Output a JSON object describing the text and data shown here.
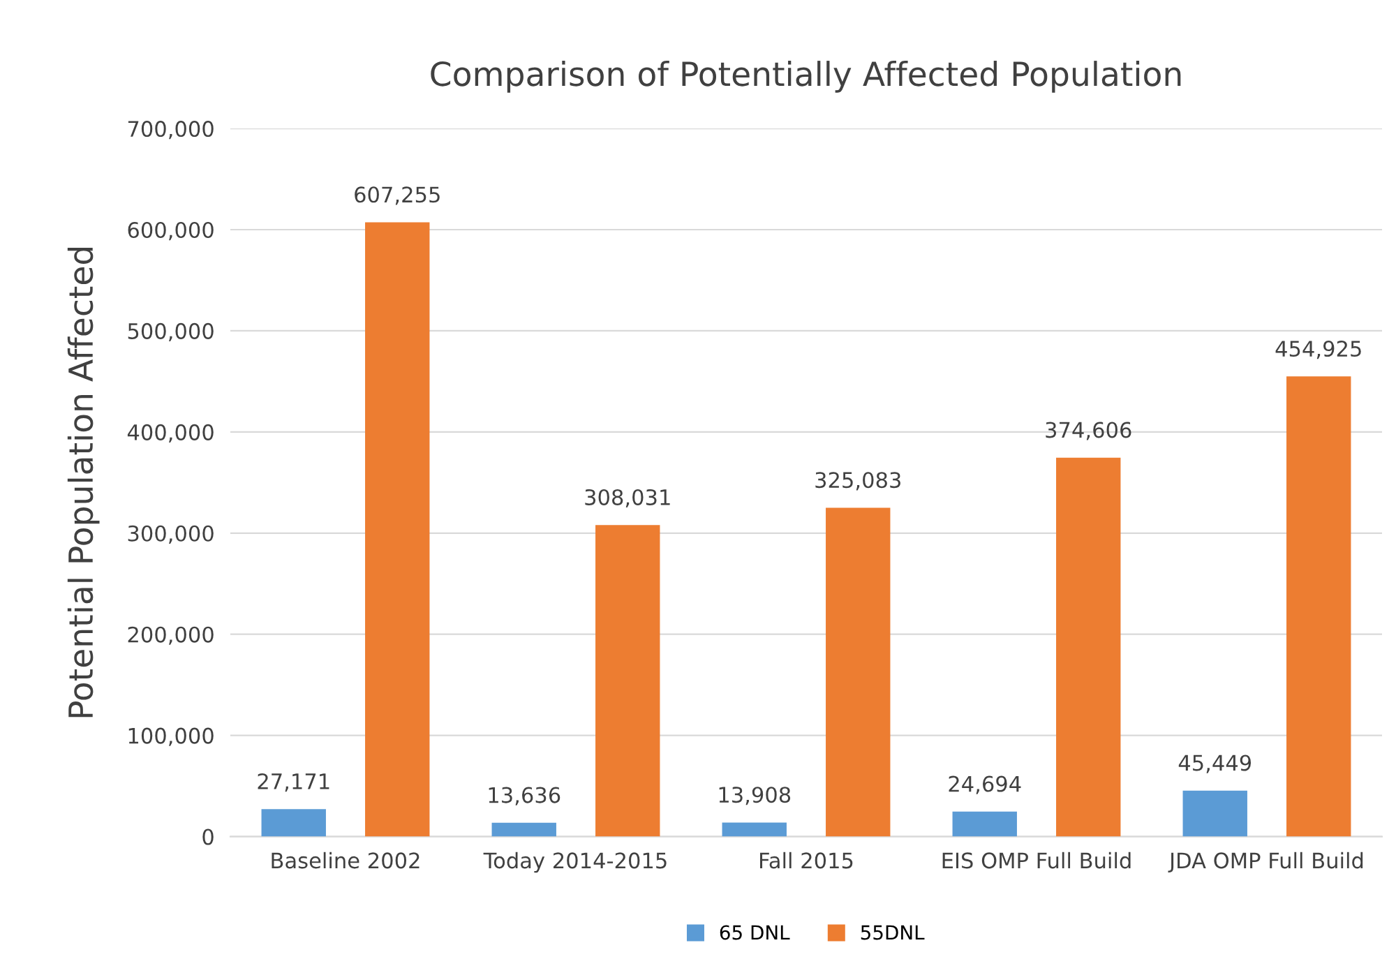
{
  "chart_data": {
    "type": "bar",
    "title": "Comparison of Potentially Affected Population",
    "ylabel": "Potential Population Affected",
    "categories": [
      "Baseline 2002",
      "Today 2014-2015",
      "Fall 2015",
      "EIS OMP Full Build",
      "JDA OMP Full Build"
    ],
    "series": [
      {
        "name": "65 DNL",
        "color": "#5b9bd5",
        "values": [
          27171,
          13636,
          13908,
          24694,
          45449
        ],
        "value_labels": [
          "27,171",
          "13,636",
          "13,908",
          "24,694",
          "45,449"
        ]
      },
      {
        "name": "55DNL",
        "color": "#ed7d31",
        "values": [
          607255,
          308031,
          325083,
          374606,
          454925
        ],
        "value_labels": [
          "607,255",
          "308,031",
          "325,083",
          "374,606",
          "454,925"
        ]
      }
    ],
    "ylim": [
      0,
      700000
    ],
    "yticks": [
      {
        "value": 0,
        "label": "0"
      },
      {
        "value": 100000,
        "label": "100,000"
      },
      {
        "value": 200000,
        "label": "200,000"
      },
      {
        "value": 300000,
        "label": "300,000"
      },
      {
        "value": 400000,
        "label": "400,000"
      },
      {
        "value": 500000,
        "label": "500,000"
      },
      {
        "value": 600000,
        "label": "600,000"
      },
      {
        "value": 700000,
        "label": "700,000"
      }
    ],
    "grid": "y",
    "legend": "bottom"
  }
}
